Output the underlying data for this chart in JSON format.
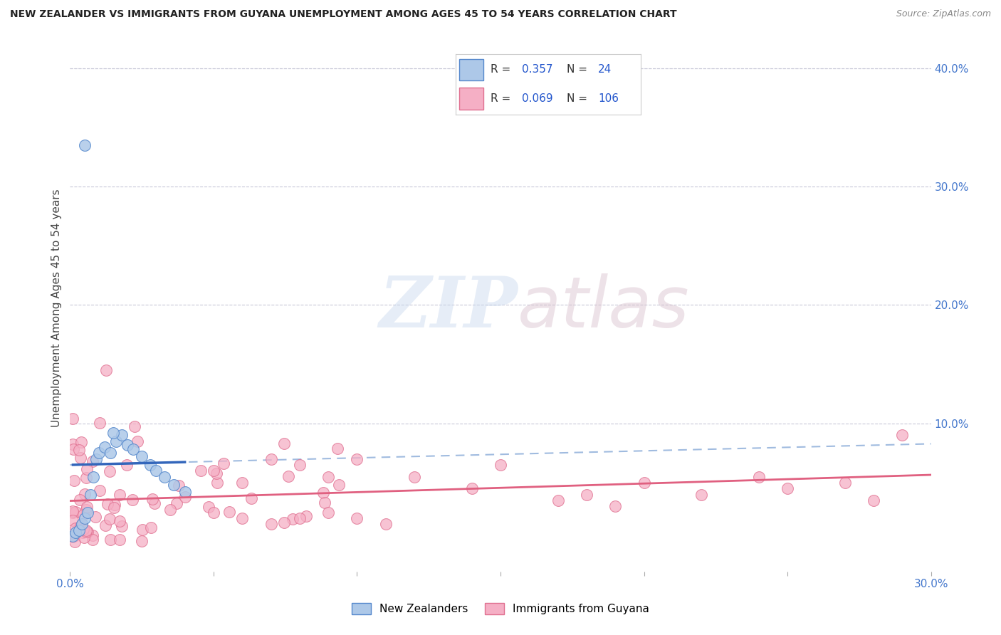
{
  "title": "NEW ZEALANDER VS IMMIGRANTS FROM GUYANA UNEMPLOYMENT AMONG AGES 45 TO 54 YEARS CORRELATION CHART",
  "source": "Source: ZipAtlas.com",
  "ylabel": "Unemployment Among Ages 45 to 54 years",
  "xlim": [
    0.0,
    0.3
  ],
  "ylim": [
    -0.025,
    0.42
  ],
  "nz_color": "#adc8e8",
  "nz_edge_color": "#5588cc",
  "guyana_color": "#f5afc5",
  "guyana_edge_color": "#e07090",
  "trend_nz_color": "#3366bb",
  "trend_nz_dash_color": "#88aad8",
  "trend_guyana_color": "#e06080",
  "watermark_zip": "ZIP",
  "watermark_atlas": "atlas",
  "legend_R_nz": "0.357",
  "legend_N_nz": "24",
  "legend_R_guyana": "0.069",
  "legend_N_guyana": "106"
}
